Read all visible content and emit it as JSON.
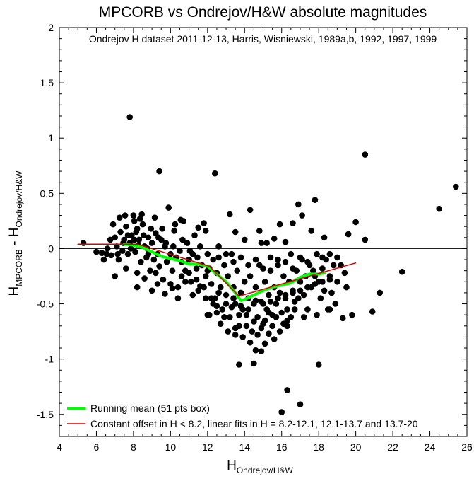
{
  "chart_data": {
    "type": "scatter",
    "title": "MPCORB vs Ondrejov/H&W absolute magnitudes",
    "subtitle": "Ondrejov H dataset 2011-12-13, Harris, Wisniewski, 1989a,b, 1992, 1997, 1999",
    "xlabel": {
      "main": "H",
      "sub": "Ondrejov/H&W"
    },
    "ylabel": {
      "main1": "H",
      "sub1": "MPCORB",
      "mid": " - H",
      "sub2": "Ondrejov/H&W"
    },
    "xlim": [
      4,
      26
    ],
    "ylim": [
      -1.7,
      2
    ],
    "x_ticks": [
      4,
      6,
      8,
      10,
      12,
      14,
      16,
      18,
      20,
      22,
      24,
      26
    ],
    "y_ticks": [
      -1.5,
      -1,
      -0.5,
      0,
      0.5,
      1,
      1.5,
      2
    ],
    "x_tick_labels": [
      "4",
      "6",
      "8",
      "10",
      "12",
      "14",
      "16",
      "18",
      "20",
      "22",
      "24",
      "26"
    ],
    "y_tick_labels": [
      "-1.5",
      "-1",
      "-0.5",
      "0",
      "0.5",
      "1",
      "1.5",
      "2"
    ],
    "grid": false,
    "zero_line": 0,
    "legend_position": "bottom-left",
    "series": [
      {
        "name": "Running mean (51 pts box)",
        "kind": "line",
        "color": "#00ff00",
        "points": [
          [
            7.5,
            0.04
          ],
          [
            8,
            0.03
          ],
          [
            8.5,
            0.01
          ],
          [
            9,
            -0.03
          ],
          [
            9.5,
            -0.07
          ],
          [
            10,
            -0.09
          ],
          [
            10.5,
            -0.11
          ],
          [
            11,
            -0.14
          ],
          [
            11.5,
            -0.14
          ],
          [
            12,
            -0.16
          ],
          [
            12.5,
            -0.23
          ],
          [
            13,
            -0.3
          ],
          [
            13.5,
            -0.4
          ],
          [
            13.8,
            -0.47
          ],
          [
            14,
            -0.46
          ],
          [
            14.5,
            -0.42
          ],
          [
            15,
            -0.38
          ],
          [
            15.5,
            -0.35
          ],
          [
            16,
            -0.33
          ],
          [
            16.5,
            -0.31
          ],
          [
            17,
            -0.26
          ],
          [
            17.5,
            -0.23
          ],
          [
            18,
            -0.23
          ],
          [
            18.3,
            -0.22
          ]
        ]
      },
      {
        "name": "Constant offset in H < 8.2, linear fits in H = 8.2-12.1, 12.1-13.7 and 13.7-20",
        "kind": "line",
        "color": "#dd0000",
        "points": [
          [
            5,
            0.04
          ],
          [
            8.2,
            0.04
          ],
          [
            12.1,
            -0.16
          ],
          [
            13.7,
            -0.43
          ],
          [
            20,
            -0.13
          ]
        ]
      }
    ],
    "scatter": {
      "color": "#000000",
      "points": [
        [
          7.8,
          1.19
        ],
        [
          9.4,
          0.7
        ],
        [
          12.4,
          0.68
        ],
        [
          20.5,
          0.85
        ],
        [
          25.4,
          0.56
        ],
        [
          24.5,
          0.36
        ],
        [
          22.5,
          -0.21
        ],
        [
          21.3,
          -0.4
        ],
        [
          20.9,
          -0.57
        ],
        [
          20.5,
          0.08
        ],
        [
          20.0,
          0.24
        ],
        [
          19.6,
          0.13
        ],
        [
          19.0,
          -0.08
        ],
        [
          19.2,
          -0.15
        ],
        [
          16.0,
          -1.48
        ],
        [
          16.3,
          -1.28
        ],
        [
          17.0,
          -1.41
        ],
        [
          18.0,
          -1.05
        ],
        [
          13.7,
          -1.05
        ],
        [
          14.5,
          -1.04
        ],
        [
          15.1,
          -0.86
        ],
        [
          15.3,
          -0.77
        ],
        [
          14.9,
          -0.93
        ],
        [
          5.3,
          0.05
        ],
        [
          6.0,
          -0.03
        ],
        [
          6.3,
          -0.04
        ],
        [
          6.6,
          0.0
        ],
        [
          6.8,
          -0.06
        ],
        [
          7.0,
          0.1
        ],
        [
          7.1,
          0.02
        ],
        [
          7.2,
          -0.1
        ],
        [
          7.3,
          0.15
        ],
        [
          7.4,
          -0.02
        ],
        [
          7.5,
          0.08
        ],
        [
          7.6,
          0.2
        ],
        [
          7.7,
          -0.05
        ],
        [
          7.8,
          0.05
        ],
        [
          7.9,
          0.12
        ],
        [
          8.0,
          0.3
        ],
        [
          8.1,
          -0.03
        ],
        [
          8.2,
          0.18
        ],
        [
          8.3,
          0.08
        ],
        [
          8.4,
          -0.12
        ],
        [
          8.5,
          0.22
        ],
        [
          8.6,
          0.02
        ],
        [
          8.7,
          -0.08
        ],
        [
          8.8,
          0.1
        ],
        [
          8.9,
          -0.2
        ],
        [
          9.0,
          0.05
        ],
        [
          9.1,
          -0.1
        ],
        [
          9.2,
          0.14
        ],
        [
          9.3,
          -0.05
        ],
        [
          9.4,
          -0.16
        ],
        [
          9.5,
          0.08
        ],
        [
          9.6,
          -0.28
        ],
        [
          9.7,
          0.02
        ],
        [
          9.8,
          -0.12
        ],
        [
          9.9,
          0.37
        ],
        [
          10.0,
          -0.05
        ],
        [
          10.1,
          -0.2
        ],
        [
          10.2,
          0.16
        ],
        [
          10.3,
          -0.08
        ],
        [
          10.4,
          -0.35
        ],
        [
          10.5,
          -0.02
        ],
        [
          10.6,
          -0.12
        ],
        [
          10.7,
          0.25
        ],
        [
          10.8,
          -0.2
        ],
        [
          10.9,
          0.05
        ],
        [
          11.0,
          -0.1
        ],
        [
          11.1,
          -0.3
        ],
        [
          11.2,
          -0.05
        ],
        [
          11.3,
          0.12
        ],
        [
          11.4,
          -0.18
        ],
        [
          11.5,
          -0.38
        ],
        [
          11.6,
          0.02
        ],
        [
          11.7,
          -0.15
        ],
        [
          11.8,
          0.23
        ],
        [
          11.9,
          -0.25
        ],
        [
          6.9,
          0.22
        ],
        [
          7.25,
          0.28
        ],
        [
          7.55,
          0.3
        ],
        [
          8.05,
          0.25
        ],
        [
          8.35,
          0.27
        ],
        [
          8.45,
          0.31
        ],
        [
          8.75,
          0.0
        ],
        [
          9.15,
          0.28
        ],
        [
          9.55,
          0.18
        ],
        [
          10.25,
          0.22
        ],
        [
          10.55,
          0.26
        ],
        [
          11.5,
          0.19
        ],
        [
          11.9,
          0.16
        ],
        [
          8.2,
          -0.35
        ],
        [
          8.6,
          -0.27
        ],
        [
          9.0,
          -0.38
        ],
        [
          9.3,
          -0.32
        ],
        [
          9.7,
          -0.41
        ],
        [
          10.1,
          -0.36
        ],
        [
          10.4,
          -0.45
        ],
        [
          10.8,
          -0.3
        ],
        [
          11.2,
          -0.42
        ],
        [
          11.6,
          -0.34
        ],
        [
          12.0,
          -0.05
        ],
        [
          12.1,
          -0.18
        ],
        [
          12.2,
          -0.32
        ],
        [
          12.3,
          -0.1
        ],
        [
          12.4,
          -0.45
        ],
        [
          12.5,
          -0.22
        ],
        [
          12.6,
          0.02
        ],
        [
          12.7,
          -0.35
        ],
        [
          12.8,
          -0.55
        ],
        [
          12.9,
          -0.15
        ],
        [
          13.0,
          -0.42
        ],
        [
          13.1,
          -0.25
        ],
        [
          13.2,
          -0.62
        ],
        [
          13.3,
          -0.05
        ],
        [
          13.4,
          -0.35
        ],
        [
          13.5,
          -0.5
        ],
        [
          13.6,
          -0.2
        ],
        [
          13.7,
          -0.7
        ],
        [
          13.8,
          -0.4
        ],
        [
          13.9,
          -0.55
        ],
        [
          14.0,
          -0.3
        ],
        [
          14.1,
          -0.6
        ],
        [
          14.2,
          -0.45
        ],
        [
          14.3,
          -0.25
        ],
        [
          14.4,
          -0.75
        ],
        [
          14.5,
          -0.5
        ],
        [
          14.6,
          -0.35
        ],
        [
          14.7,
          -0.62
        ],
        [
          14.8,
          -0.15
        ],
        [
          14.9,
          -0.48
        ],
        [
          15.0,
          -0.68
        ],
        [
          15.1,
          -0.3
        ],
        [
          15.2,
          -0.55
        ],
        [
          15.3,
          -0.42
        ],
        [
          15.4,
          -0.2
        ],
        [
          15.5,
          -0.6
        ],
        [
          15.6,
          -0.35
        ],
        [
          15.7,
          -0.5
        ],
        [
          15.8,
          -0.1
        ],
        [
          15.9,
          -0.4
        ],
        [
          16.0,
          -0.58
        ],
        [
          16.1,
          -0.25
        ],
        [
          16.2,
          -0.45
        ],
        [
          16.3,
          -0.65
        ],
        [
          16.4,
          -0.3
        ],
        [
          16.5,
          -0.05
        ],
        [
          16.6,
          -0.38
        ],
        [
          16.7,
          -0.55
        ],
        [
          16.8,
          -0.2
        ],
        [
          16.9,
          -0.45
        ],
        [
          17.0,
          -0.3
        ],
        [
          17.1,
          -0.1
        ],
        [
          17.2,
          -0.42
        ],
        [
          17.3,
          -0.25
        ],
        [
          17.4,
          -0.55
        ],
        [
          17.5,
          -0.15
        ],
        [
          17.6,
          -0.35
        ],
        [
          17.7,
          -0.2
        ],
        [
          17.8,
          0.44
        ],
        [
          17.9,
          -0.05
        ],
        [
          18.0,
          -0.3
        ],
        [
          18.1,
          -0.45
        ],
        [
          18.2,
          -0.18
        ],
        [
          18.3,
          -0.38
        ],
        [
          18.4,
          -0.1
        ],
        [
          18.5,
          -0.55
        ],
        [
          18.6,
          -0.25
        ],
        [
          18.7,
          -0.4
        ],
        [
          18.8,
          -0.15
        ],
        [
          18.9,
          -0.5
        ],
        [
          12.1,
          -0.6
        ],
        [
          12.3,
          -0.5
        ],
        [
          12.5,
          -0.58
        ],
        [
          12.7,
          -0.68
        ],
        [
          12.9,
          -0.62
        ],
        [
          13.1,
          -0.75
        ],
        [
          13.3,
          -0.53
        ],
        [
          13.5,
          -0.72
        ],
        [
          13.7,
          -0.6
        ],
        [
          13.9,
          -0.8
        ],
        [
          14.1,
          -0.7
        ],
        [
          14.3,
          -0.85
        ],
        [
          14.5,
          -0.66
        ],
        [
          14.7,
          -0.78
        ],
        [
          14.9,
          -0.72
        ],
        [
          15.1,
          -0.65
        ],
        [
          15.3,
          -0.58
        ],
        [
          15.5,
          -0.7
        ],
        [
          15.7,
          -0.62
        ],
        [
          15.9,
          -0.75
        ],
        [
          16.1,
          -0.68
        ],
        [
          16.3,
          -0.55
        ],
        [
          16.5,
          -0.62
        ],
        [
          16.7,
          -0.48
        ],
        [
          13.2,
          0.31
        ],
        [
          14.3,
          0.35
        ],
        [
          14.8,
          0.16
        ],
        [
          15.2,
          0.05
        ],
        [
          15.9,
          0.22
        ],
        [
          16.6,
          0.23
        ],
        [
          16.9,
          0.4
        ],
        [
          17.1,
          0.3
        ],
        [
          16.2,
          0.06
        ],
        [
          14.9,
          0.05
        ],
        [
          15.6,
          0.09
        ],
        [
          17.6,
          0.16
        ],
        [
          18.3,
          0.1
        ],
        [
          13.5,
          0.15
        ],
        [
          14.0,
          0.08
        ],
        [
          12.6,
          -0.08
        ],
        [
          13.0,
          -0.05
        ],
        [
          13.4,
          -0.12
        ],
        [
          13.8,
          -0.08
        ],
        [
          14.2,
          -0.15
        ],
        [
          14.6,
          -0.1
        ],
        [
          15.0,
          -0.18
        ],
        [
          15.4,
          -0.08
        ],
        [
          15.8,
          -0.15
        ],
        [
          16.2,
          -0.12
        ],
        [
          16.6,
          -0.18
        ],
        [
          17.0,
          -0.08
        ],
        [
          17.4,
          -0.12
        ],
        [
          17.8,
          -0.25
        ],
        [
          18.2,
          -0.08
        ],
        [
          18.6,
          -0.05
        ],
        [
          19.4,
          -0.22
        ],
        [
          19.5,
          -0.35
        ],
        [
          12.2,
          -0.45
        ],
        [
          12.6,
          -0.4
        ],
        [
          13.0,
          -0.5
        ],
        [
          13.4,
          -0.45
        ],
        [
          13.8,
          -0.52
        ],
        [
          14.2,
          -0.55
        ],
        [
          14.6,
          -0.47
        ],
        [
          15.0,
          -0.5
        ],
        [
          15.4,
          -0.48
        ],
        [
          15.8,
          -0.45
        ],
        [
          16.2,
          -0.42
        ],
        [
          16.6,
          -0.4
        ],
        [
          17.0,
          -0.38
        ],
        [
          17.4,
          -0.35
        ],
        [
          17.8,
          -0.32
        ],
        [
          18.2,
          -0.3
        ],
        [
          18.6,
          -0.28
        ],
        [
          19.0,
          -0.3
        ],
        [
          19.8,
          -0.6
        ],
        [
          19.3,
          -0.63
        ],
        [
          18.6,
          -0.55
        ],
        [
          17.9,
          -0.6
        ],
        [
          17.2,
          -0.62
        ],
        [
          16.3,
          -0.7
        ],
        [
          15.6,
          -0.82
        ],
        [
          14.6,
          -0.92
        ],
        [
          13.5,
          -0.78
        ],
        [
          12.5,
          -0.52
        ],
        [
          11.9,
          -0.45
        ],
        [
          12.0,
          -0.6
        ],
        [
          6.4,
          -0.1
        ],
        [
          7.0,
          -0.25
        ],
        [
          7.6,
          -0.18
        ],
        [
          8.2,
          -0.22
        ],
        [
          8.8,
          -0.05
        ],
        [
          9.2,
          -0.22
        ],
        [
          10.0,
          -0.32
        ],
        [
          10.6,
          -0.25
        ],
        [
          11.0,
          -0.22
        ],
        [
          11.4,
          -0.28
        ],
        [
          11.8,
          -0.35
        ],
        [
          12.0,
          -0.2
        ],
        [
          7.7,
          0.12
        ],
        [
          8.15,
          0.15
        ],
        [
          8.55,
          0.12
        ],
        [
          8.95,
          0.18
        ],
        [
          9.35,
          0.1
        ],
        [
          9.75,
          0.05
        ],
        [
          10.15,
          0.02
        ],
        [
          10.65,
          0.08
        ],
        [
          11.05,
          -0.02
        ],
        [
          11.45,
          -0.08
        ],
        [
          8.25,
          0.03
        ],
        [
          8.05,
          0.08
        ],
        [
          7.85,
          0.0
        ],
        [
          7.45,
          0.05
        ],
        [
          7.15,
          -0.05
        ],
        [
          6.75,
          0.08
        ],
        [
          6.55,
          -0.05
        ]
      ]
    },
    "legend": [
      {
        "label": "Running mean (51 pts box)",
        "color": "#00ff00"
      },
      {
        "label": "Constant offset in H < 8.2, linear fits in H = 8.2-12.1, 12.1-13.7 and 13.7-20",
        "color": "#dd0000"
      }
    ]
  }
}
